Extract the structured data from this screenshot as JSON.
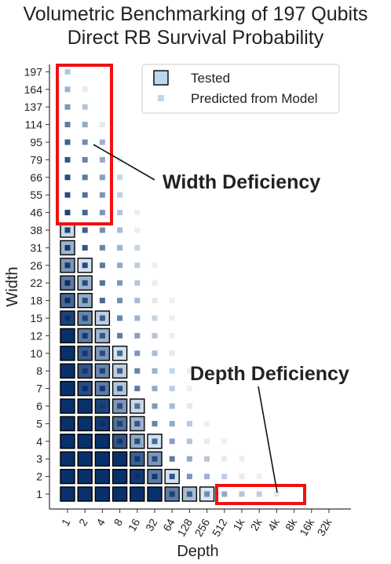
{
  "chart_data": {
    "type": "heatmap",
    "title": "Volumetric Benchmarking of 197 Qubits",
    "subtitle": "Direct RB Survival Probability",
    "xlabel": "Depth",
    "ylabel": "Width",
    "x_categories": [
      "1",
      "2",
      "4",
      "8",
      "16",
      "32",
      "64",
      "128",
      "256",
      "512",
      "1k",
      "2k",
      "4k",
      "8k",
      "16k",
      "32k"
    ],
    "y_categories": [
      "1",
      "2",
      "3",
      "4",
      "5",
      "6",
      "7",
      "8",
      "10",
      "12",
      "15",
      "18",
      "22",
      "26",
      "31",
      "38",
      "46",
      "55",
      "66",
      "79",
      "95",
      "114",
      "137",
      "164",
      "197"
    ],
    "legend": {
      "items": [
        "Tested",
        "Predicted from Model"
      ],
      "position": "top-right"
    },
    "annotations": [
      "Width Deficiency",
      "Depth Deficiency"
    ],
    "tested_cells": [
      {
        "w": "1",
        "d": [
          "1",
          "2",
          "4",
          "8",
          "16",
          "32",
          "64",
          "128",
          "256"
        ]
      },
      {
        "w": "2",
        "d": [
          "1",
          "2",
          "4",
          "8",
          "16",
          "32",
          "64"
        ]
      },
      {
        "w": "3",
        "d": [
          "1",
          "2",
          "4",
          "8",
          "16",
          "32"
        ]
      },
      {
        "w": "4",
        "d": [
          "1",
          "2",
          "4",
          "8",
          "16",
          "32"
        ]
      },
      {
        "w": "5",
        "d": [
          "1",
          "2",
          "4",
          "8",
          "16"
        ]
      },
      {
        "w": "6",
        "d": [
          "1",
          "2",
          "4",
          "8",
          "16"
        ]
      },
      {
        "w": "7",
        "d": [
          "1",
          "2",
          "4",
          "8"
        ]
      },
      {
        "w": "8",
        "d": [
          "1",
          "2",
          "4",
          "8"
        ]
      },
      {
        "w": "10",
        "d": [
          "1",
          "2",
          "4",
          "8"
        ]
      },
      {
        "w": "12",
        "d": [
          "1",
          "2",
          "4"
        ]
      },
      {
        "w": "15",
        "d": [
          "1",
          "2",
          "4"
        ]
      },
      {
        "w": "18",
        "d": [
          "1",
          "2"
        ]
      },
      {
        "w": "22",
        "d": [
          "1",
          "2"
        ]
      },
      {
        "w": "26",
        "d": [
          "1",
          "2"
        ]
      },
      {
        "w": "31",
        "d": [
          "1"
        ]
      },
      {
        "w": "38",
        "d": [
          "1"
        ]
      }
    ],
    "tested_levels": [
      [
        1.0,
        1.0,
        1.0,
        1.0,
        1.0,
        1.0,
        0.6,
        0.25,
        0.02
      ],
      [
        1.0,
        1.0,
        1.0,
        1.0,
        0.95,
        0.6,
        0.05
      ],
      [
        1.0,
        1.0,
        1.0,
        1.0,
        0.75,
        0.45
      ],
      [
        1.0,
        1.0,
        1.0,
        0.8,
        0.35,
        0.05
      ],
      [
        1.0,
        1.0,
        0.95,
        0.65,
        0.3
      ],
      [
        1.0,
        1.0,
        0.9,
        0.45,
        0.1
      ],
      [
        1.0,
        0.85,
        0.6,
        0.2
      ],
      [
        1.0,
        0.8,
        0.55,
        0.15
      ],
      [
        1.0,
        0.75,
        0.45,
        0.05
      ],
      [
        1.0,
        0.6,
        0.3
      ],
      [
        0.9,
        0.55,
        0.15
      ],
      [
        0.7,
        0.35
      ],
      [
        0.6,
        0.3
      ],
      [
        0.45,
        0.05
      ],
      [
        0.3
      ],
      [
        0.1
      ]
    ],
    "predicted_levels": [
      [
        1.0,
        1.0,
        1.0,
        1.0,
        1.0,
        1.0,
        0.9,
        0.75,
        0.5,
        0.35,
        0.2,
        0.15,
        0.1
      ],
      [
        1.0,
        1.0,
        1.0,
        1.0,
        1.0,
        0.95,
        0.8,
        0.45,
        0.3,
        0.15,
        0.08,
        0.04
      ],
      [
        1.0,
        1.0,
        1.0,
        1.0,
        0.95,
        0.85,
        0.6,
        0.35,
        0.18,
        0.08,
        0.04
      ],
      [
        1.0,
        1.0,
        1.0,
        0.95,
        0.85,
        0.7,
        0.4,
        0.2,
        0.08,
        0.03
      ],
      [
        1.0,
        1.0,
        1.0,
        0.9,
        0.8,
        0.55,
        0.35,
        0.18,
        0.06
      ],
      [
        1.0,
        1.0,
        0.95,
        0.85,
        0.65,
        0.45,
        0.25,
        0.1
      ],
      [
        1.0,
        1.0,
        0.95,
        0.8,
        0.6,
        0.35,
        0.15,
        0.05
      ],
      [
        1.0,
        0.95,
        0.9,
        0.75,
        0.55,
        0.3,
        0.12,
        0.04
      ],
      [
        1.0,
        0.95,
        0.85,
        0.7,
        0.45,
        0.25,
        0.1
      ],
      [
        1.0,
        0.95,
        0.8,
        0.6,
        0.4,
        0.2,
        0.06
      ],
      [
        1.0,
        0.9,
        0.75,
        0.55,
        0.3,
        0.12,
        0.04
      ],
      [
        1.0,
        0.85,
        0.7,
        0.5,
        0.25,
        0.1,
        0.03
      ],
      [
        1.0,
        0.85,
        0.65,
        0.45,
        0.2,
        0.06
      ],
      [
        0.95,
        0.85,
        0.6,
        0.35,
        0.15,
        0.04
      ],
      [
        0.95,
        0.8,
        0.55,
        0.3,
        0.12
      ],
      [
        0.9,
        0.75,
        0.5,
        0.25,
        0.06
      ],
      [
        0.9,
        0.7,
        0.45,
        0.2,
        0.05
      ],
      [
        0.85,
        0.65,
        0.45,
        0.15
      ],
      [
        0.85,
        0.6,
        0.4,
        0.12
      ],
      [
        0.8,
        0.55,
        0.35,
        0.08
      ],
      [
        0.75,
        0.5,
        0.3
      ],
      [
        0.6,
        0.35,
        0.1
      ],
      [
        0.45,
        0.2
      ],
      [
        0.3,
        0.08
      ],
      [
        0.2
      ]
    ],
    "highlight_regions": [
      {
        "label": "Width Deficiency",
        "width_range": [
          "46",
          "197"
        ],
        "depth_range": [
          "1",
          "4"
        ],
        "color": "#ee1111"
      },
      {
        "label": "Depth Deficiency",
        "width_range": [
          "1",
          "1"
        ],
        "depth_range": [
          "512",
          "4k"
        ],
        "color": "#ee1111"
      }
    ],
    "colors": {
      "dark": "#08306b",
      "light": "#deebf7",
      "highlight": "#ee1111"
    }
  }
}
